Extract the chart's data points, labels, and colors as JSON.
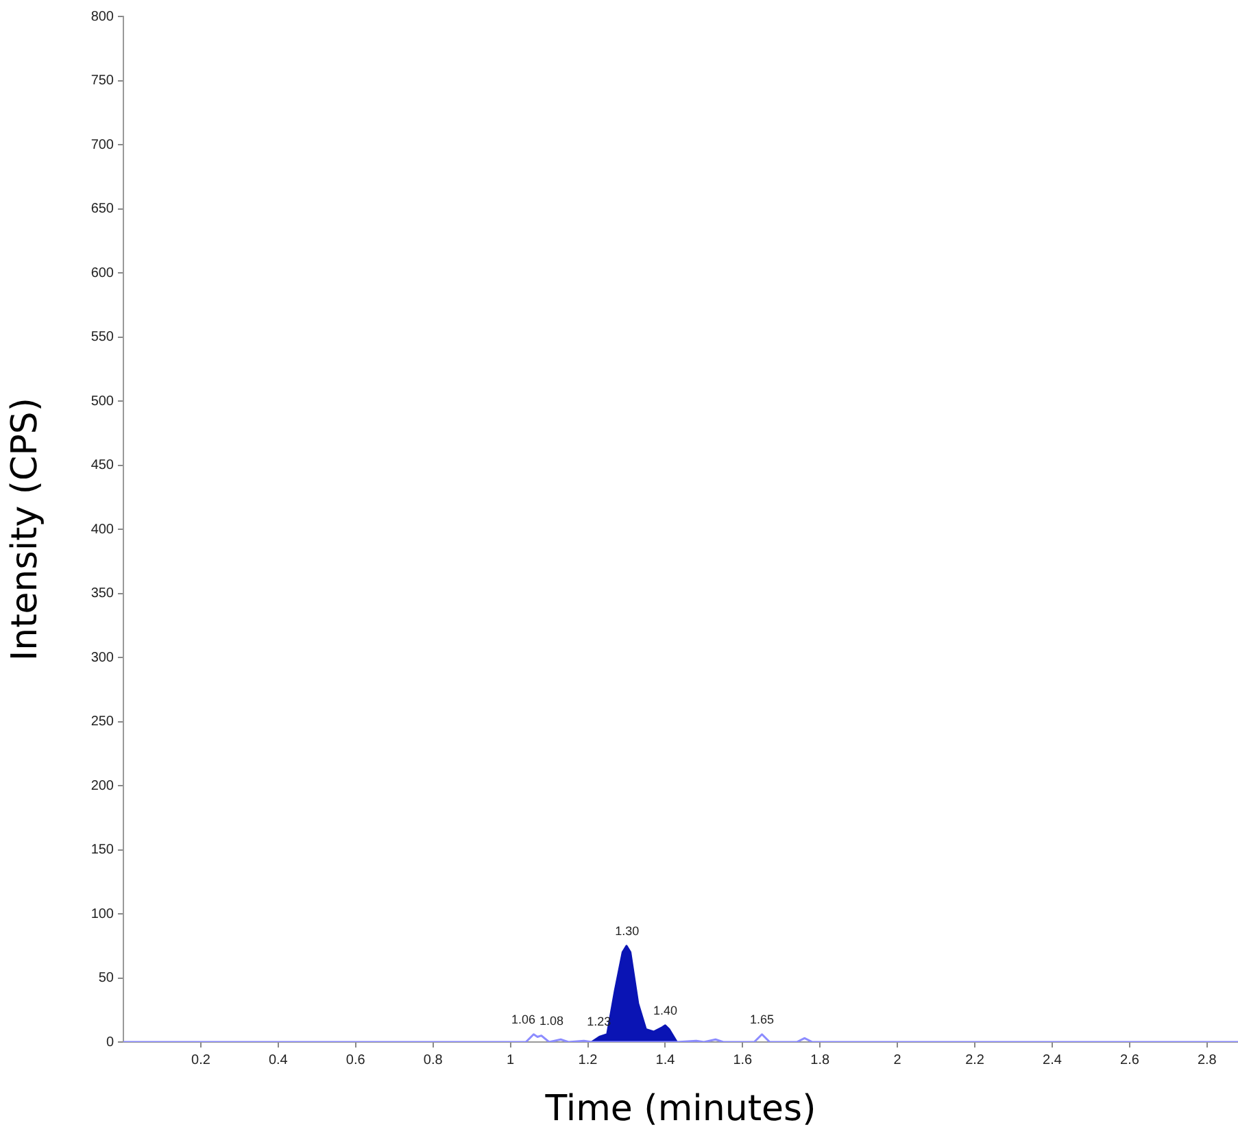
{
  "chart_data": {
    "type": "line",
    "xlabel": "Time (minutes)",
    "ylabel": "Intensity (CPS)",
    "xlim": [
      0,
      2.88
    ],
    "xticks": [
      0.2,
      0.4,
      0.6,
      0.8,
      1.0,
      1.2,
      1.4,
      1.6,
      1.8,
      2.0,
      2.2,
      2.4,
      2.6,
      2.8
    ],
    "ylim": [
      0,
      800
    ],
    "yticks": [
      0,
      50,
      100,
      150,
      200,
      250,
      300,
      350,
      400,
      450,
      500,
      550,
      600,
      650,
      700,
      750,
      800
    ],
    "grid": false,
    "legend": false,
    "marker": "none",
    "series": [
      {
        "color": "#8c8cff",
        "x": [
          0,
          1.04,
          1.06,
          1.07,
          1.08,
          1.1,
          1.13,
          1.15,
          1.19,
          1.21,
          1.43,
          1.48,
          1.5,
          1.53,
          1.55,
          1.63,
          1.65,
          1.67,
          1.74,
          1.76,
          1.78,
          2.88
        ],
        "values": [
          0,
          0,
          6,
          4,
          5,
          0,
          2,
          0,
          1,
          0,
          0,
          1,
          0,
          2,
          0,
          0,
          6,
          0,
          0,
          3,
          0,
          0
        ]
      },
      {
        "type": "area",
        "color": "#0a14b4",
        "x": [
          1.21,
          1.23,
          1.25,
          1.27,
          1.29,
          1.3,
          1.31,
          1.33,
          1.35,
          1.37,
          1.39,
          1.4,
          1.41,
          1.43
        ],
        "values": [
          0,
          4,
          6,
          40,
          70,
          75,
          70,
          30,
          10,
          8,
          11,
          13,
          10,
          0
        ]
      }
    ],
    "annotations": [
      {
        "text": "1.06",
        "x": 1.06,
        "y": 6
      },
      {
        "text": "1.08",
        "x": 1.08,
        "y": 5
      },
      {
        "text": "1.23",
        "x": 1.23,
        "y": 4
      },
      {
        "text": "1.30",
        "x": 1.3,
        "y": 75
      },
      {
        "text": "1.40",
        "x": 1.4,
        "y": 13
      },
      {
        "text": "1.65",
        "x": 1.65,
        "y": 6
      }
    ]
  }
}
